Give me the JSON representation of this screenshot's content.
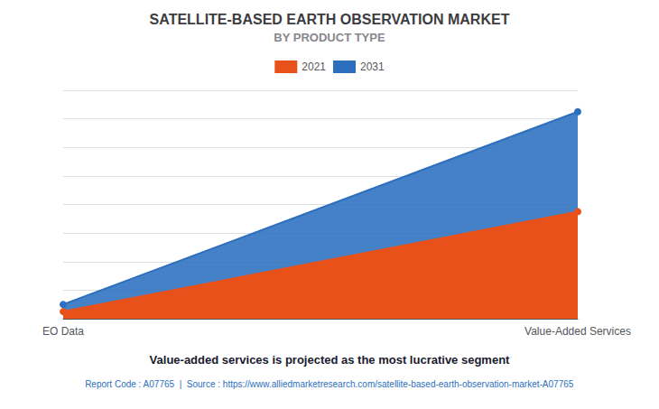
{
  "chart_data": {
    "type": "area",
    "title": "SATELLITE-BASED EARTH OBSERVATION MARKET",
    "subtitle": "BY PRODUCT TYPE",
    "annotations": [
      "Value-added services is projected as the most lucrative segment",
      "Report Code : A07765  |  Source : https://www.alliedmarketresearch.com/satellite-based-earth-observation-market-A07765"
    ],
    "categories": [
      "EO Data",
      "Value-Added Services"
    ],
    "series": [
      {
        "name": "2021",
        "color": "#e8521a",
        "values": [
          0.5,
          7.5
        ]
      },
      {
        "name": "2031",
        "color": "#2b6fbe",
        "values": [
          1.0,
          14.5
        ]
      }
    ],
    "ylim": [
      0,
      16
    ],
    "yticks": [
      0,
      2,
      4,
      6,
      8,
      10,
      12,
      14,
      16
    ],
    "grid": true,
    "legend": "top",
    "tick_labels": "x",
    "stacked": false,
    "marker": "circle"
  }
}
